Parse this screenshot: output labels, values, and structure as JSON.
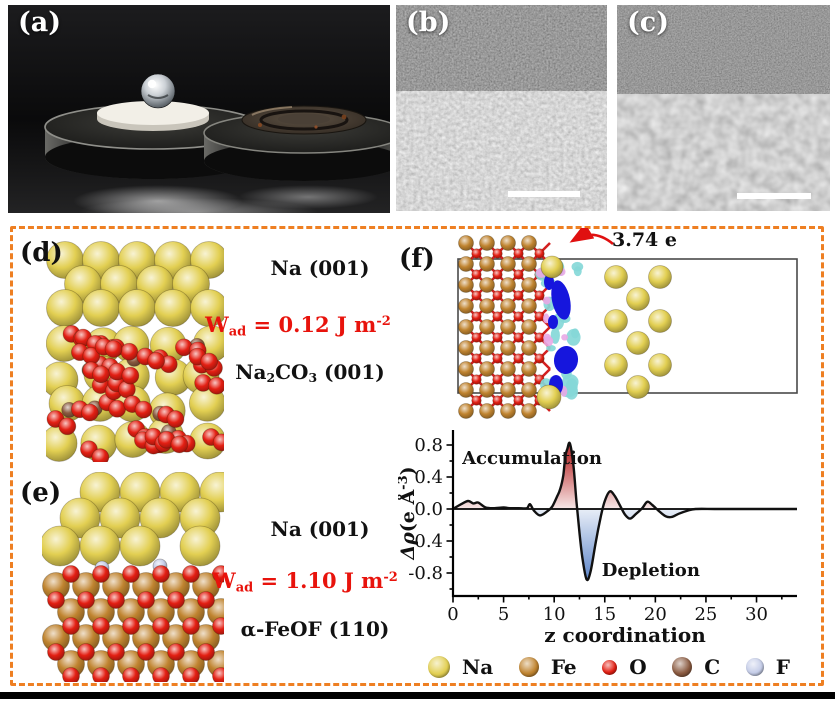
{
  "panels": {
    "a": {
      "label": "(a)"
    },
    "b": {
      "label": "(b)"
    },
    "c": {
      "label": "(c)"
    },
    "d": {
      "label": "(d)",
      "surface_label": "Na (001)",
      "adhesion": {
        "symbol": "W",
        "subscript": "ad",
        "value": " = 0.12 J m",
        "superscript": "-2"
      },
      "substrate": {
        "p1": "Na",
        "s1": "2",
        "p2": "CO",
        "s2": "3",
        "p3": " (001)"
      }
    },
    "e": {
      "label": "(e)",
      "surface_label": "Na (001)",
      "adhesion": {
        "symbol": "W",
        "subscript": "ad",
        "value": " = 1.10 J m",
        "superscript": "-2"
      },
      "substrate_label": "α-FeOF (110)"
    },
    "f": {
      "label": "(f)",
      "charge_transfer": "3.74 e"
    }
  },
  "chart_data": {
    "type": "area",
    "xlabel": "z coordination",
    "ylabel_main": "Δρ",
    "ylabel_mid": "(e Å",
    "ylabel_sup": "-3",
    "ylabel_close": ")",
    "xlim": [
      0,
      34
    ],
    "ylim": [
      -1.08,
      0.99
    ],
    "xticks": [
      0,
      5,
      10,
      15,
      20,
      25,
      30
    ],
    "xtick_minor_step": 2.5,
    "ytick_values": [
      0.8,
      0.4,
      0.0,
      -0.4,
      -0.8
    ],
    "ytick_labels": [
      "0.8",
      "0.4",
      "0.0",
      "-0.4",
      "-0.8"
    ],
    "ytick_minor_step": 0.2,
    "annotations": [
      {
        "text": "Accumulation",
        "x": 0.9,
        "y": 0.56
      },
      {
        "text": "Depletion",
        "x": 14.7,
        "y": -0.84
      }
    ],
    "fill_positive_color": "#c04040",
    "fill_negative_color": "#3f6fc0",
    "points": [
      [
        0,
        0
      ],
      [
        0.8,
        0.06
      ],
      [
        1.5,
        0.1
      ],
      [
        2.0,
        0.07
      ],
      [
        2.5,
        0.08
      ],
      [
        3.2,
        0.02
      ],
      [
        4.0,
        0.01
      ],
      [
        5.0,
        0.02
      ],
      [
        5.6,
        0.01
      ],
      [
        6.5,
        0.01
      ],
      [
        7.3,
        0.01
      ],
      [
        7.6,
        0.06
      ],
      [
        8.0,
        -0.02
      ],
      [
        8.6,
        -0.08
      ],
      [
        9.3,
        -0.03
      ],
      [
        9.8,
        0.03
      ],
      [
        10.3,
        0.16
      ],
      [
        10.6,
        0.25
      ],
      [
        10.9,
        0.42
      ],
      [
        11.1,
        0.66
      ],
      [
        11.3,
        0.75
      ],
      [
        11.55,
        0.82
      ],
      [
        11.9,
        0.55
      ],
      [
        12.2,
        0.1
      ],
      [
        12.5,
        -0.3
      ],
      [
        12.8,
        -0.62
      ],
      [
        13.2,
        -0.88
      ],
      [
        13.6,
        -0.78
      ],
      [
        14.1,
        -0.42
      ],
      [
        14.6,
        -0.1
      ],
      [
        15.0,
        0.1
      ],
      [
        15.5,
        0.22
      ],
      [
        16.0,
        0.16
      ],
      [
        16.6,
        0.02
      ],
      [
        17.0,
        -0.07
      ],
      [
        17.5,
        -0.12
      ],
      [
        18.1,
        -0.06
      ],
      [
        18.7,
        0.01
      ],
      [
        19.2,
        0.09
      ],
      [
        19.7,
        0.05
      ],
      [
        20.3,
        -0.02
      ],
      [
        21.0,
        -0.09
      ],
      [
        21.6,
        -0.1
      ],
      [
        22.3,
        -0.06
      ],
      [
        23.2,
        -0.02
      ],
      [
        24.0,
        0.0
      ],
      [
        26.0,
        0.0
      ],
      [
        29.0,
        0.0
      ],
      [
        32.0,
        0.0
      ],
      [
        34.0,
        0.0
      ]
    ]
  },
  "legend": {
    "items": [
      {
        "label": "Na",
        "color": "#e2cf52",
        "r": 11
      },
      {
        "label": "Fe",
        "color": "#c08430",
        "r": 10
      },
      {
        "label": "O",
        "color": "#e31f13",
        "r": 7.5
      },
      {
        "label": "C",
        "color": "#8a5a40",
        "r": 10
      },
      {
        "label": "F",
        "color": "#c5cde8",
        "r": 9
      }
    ]
  },
  "colors": {
    "dashed_border": "#ee7f22",
    "wad_red": "#e8130c",
    "arrow_red": "#e01010",
    "curve_black": "#111111"
  }
}
